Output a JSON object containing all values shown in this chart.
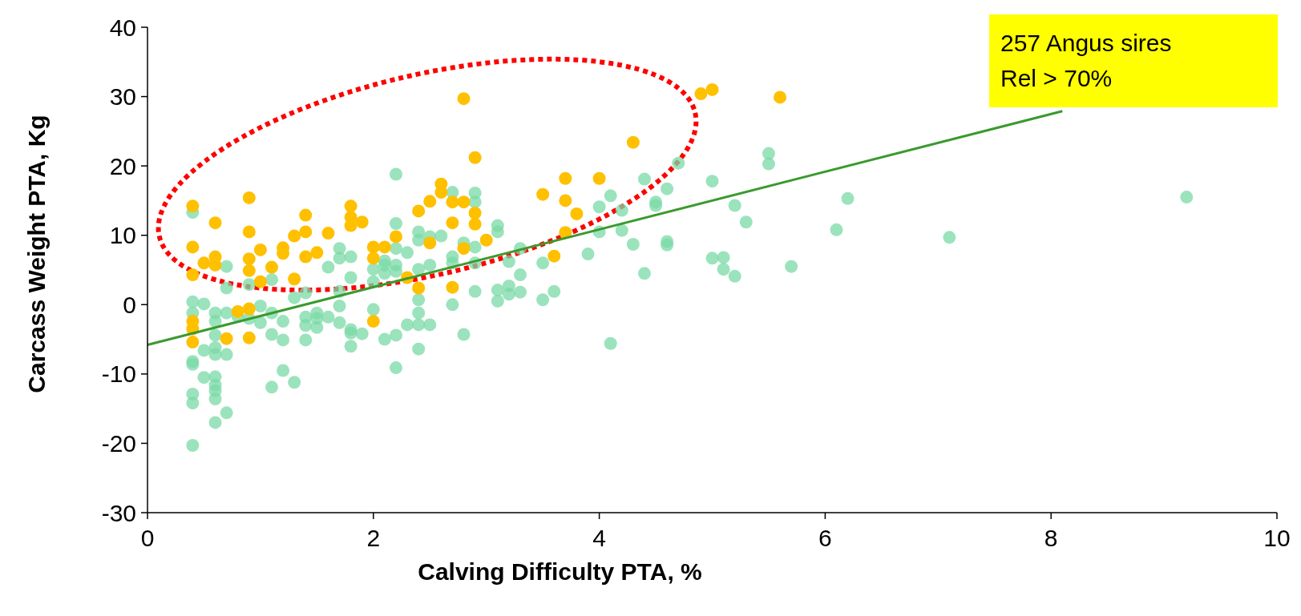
{
  "chart_data": {
    "type": "scatter",
    "xlabel": "Calving Difficulty PTA, %",
    "ylabel": "Carcass Weight PTA, Kg",
    "xlim": [
      0,
      10
    ],
    "xticks": [
      0,
      2,
      4,
      6,
      8,
      10
    ],
    "ylim": [
      -30,
      40
    ],
    "yticks": [
      -30,
      -20,
      -10,
      0,
      10,
      20,
      30,
      40
    ],
    "annotations": [
      "257 Angus sires",
      "Rel > 70%"
    ],
    "series": [
      {
        "marker": "circle",
        "color": "#7ad9a6",
        "x": [
          0.4,
          0.4,
          0.4,
          0.4,
          0.4,
          0.4,
          0.4,
          0.4,
          0.5,
          0.5,
          0.5,
          0.6,
          0.6,
          0.6,
          0.6,
          0.6,
          0.6,
          0.6,
          0.6,
          0.6,
          0.6,
          0.7,
          0.7,
          0.7,
          0.7,
          0.7,
          0.8,
          0.9,
          0.9,
          1.0,
          1.0,
          1.1,
          1.1,
          1.1,
          1.1,
          1.2,
          1.2,
          1.2,
          1.3,
          1.3,
          1.4,
          1.4,
          1.4,
          1.4,
          1.5,
          1.5,
          1.5,
          1.6,
          1.6,
          1.7,
          1.7,
          1.7,
          1.7,
          1.7,
          1.8,
          1.8,
          1.8,
          1.8,
          1.8,
          1.9,
          2.0,
          2.0,
          2.0,
          2.1,
          2.1,
          2.1,
          2.1,
          2.2,
          2.2,
          2.2,
          2.2,
          2.2,
          2.2,
          2.2,
          2.3,
          2.3,
          2.4,
          2.4,
          2.4,
          2.4,
          2.4,
          2.4,
          2.4,
          2.5,
          2.5,
          2.5,
          2.6,
          2.7,
          2.7,
          2.7,
          2.7,
          2.8,
          2.8,
          2.9,
          2.9,
          2.9,
          2.9,
          2.9,
          3.1,
          3.1,
          3.1,
          3.1,
          3.2,
          3.2,
          3.2,
          3.3,
          3.3,
          3.3,
          3.5,
          3.5,
          3.6,
          3.9,
          4.0,
          4.0,
          4.1,
          4.1,
          4.2,
          4.2,
          4.3,
          4.4,
          4.4,
          4.5,
          4.5,
          4.6,
          4.6,
          4.6,
          4.7,
          5.0,
          5.0,
          5.1,
          5.1,
          5.2,
          5.2,
          5.3,
          5.5,
          5.5,
          5.7,
          6.1,
          6.2,
          7.1,
          9.2
        ],
        "values": [
          13.3,
          0.4,
          -1.2,
          -8.2,
          -8.6,
          -12.9,
          -14.2,
          -20.3,
          0.1,
          -6.6,
          -10.5,
          -1.2,
          -2.4,
          -4.4,
          -6.2,
          -7.2,
          -10.4,
          -11.6,
          -12.4,
          -13.6,
          -17.0,
          5.5,
          2.4,
          -1.2,
          -7.2,
          -15.6,
          -1.7,
          2.9,
          -2.0,
          -0.2,
          -2.6,
          3.6,
          -1.2,
          -4.3,
          -11.9,
          -2.4,
          -5.1,
          -9.5,
          1.0,
          -11.2,
          1.7,
          -1.8,
          -3.0,
          -5.1,
          -1.2,
          -2.0,
          -3.3,
          5.4,
          -1.8,
          8.1,
          6.7,
          1.9,
          -0.2,
          -2.6,
          6.9,
          3.9,
          -3.6,
          -4.1,
          -6.0,
          -4.2,
          5.1,
          3.3,
          -0.7,
          6.3,
          5.7,
          4.5,
          -5.0,
          18.8,
          11.7,
          8.1,
          5.7,
          4.8,
          -4.4,
          -9.1,
          7.5,
          -2.9,
          10.5,
          9.3,
          5.1,
          0.7,
          -1.2,
          -2.9,
          -6.4,
          9.8,
          5.7,
          -2.9,
          9.9,
          16.2,
          6.9,
          6.0,
          0.0,
          8.9,
          -4.3,
          16.1,
          14.8,
          8.3,
          6.0,
          1.9,
          11.4,
          10.5,
          2.1,
          0.5,
          6.2,
          2.7,
          1.5,
          8.1,
          4.3,
          1.8,
          6.0,
          0.7,
          1.9,
          7.3,
          10.5,
          14.1,
          15.7,
          -5.6,
          10.7,
          13.6,
          8.7,
          18.1,
          4.5,
          14.8,
          14.3,
          9.1,
          8.6,
          16.7,
          20.4,
          17.8,
          6.7,
          5.1,
          6.8,
          14.3,
          4.1,
          11.9,
          21.8,
          20.3,
          5.5,
          10.8,
          15.3,
          9.7,
          15.5
        ]
      },
      {
        "marker": "circle",
        "color": "#ffc000",
        "x": [
          0.4,
          0.4,
          0.4,
          0.4,
          0.4,
          0.4,
          0.5,
          0.6,
          0.6,
          0.6,
          0.7,
          0.8,
          0.9,
          0.9,
          0.9,
          0.9,
          0.9,
          0.9,
          1.0,
          1.0,
          1.1,
          1.2,
          1.2,
          1.3,
          1.3,
          1.4,
          1.4,
          1.4,
          1.5,
          1.6,
          1.8,
          1.8,
          1.8,
          1.9,
          2.0,
          2.0,
          2.0,
          2.1,
          2.2,
          2.3,
          2.4,
          2.4,
          2.5,
          2.5,
          2.6,
          2.6,
          2.7,
          2.7,
          2.7,
          2.8,
          2.8,
          2.8,
          2.9,
          2.9,
          2.9,
          3.0,
          3.5,
          3.6,
          3.7,
          3.7,
          3.7,
          3.8,
          4.0,
          4.3,
          4.9,
          5.0,
          5.6
        ],
        "values": [
          14.2,
          8.3,
          4.3,
          -2.4,
          -3.5,
          -5.4,
          6.0,
          11.8,
          6.9,
          5.7,
          -4.9,
          -1.0,
          15.4,
          10.5,
          6.6,
          4.9,
          -0.6,
          -4.8,
          7.9,
          3.3,
          5.4,
          8.2,
          7.4,
          9.9,
          3.7,
          12.9,
          10.5,
          6.9,
          7.5,
          10.3,
          14.2,
          12.6,
          11.4,
          11.9,
          8.3,
          6.7,
          -2.4,
          8.3,
          9.8,
          3.9,
          13.5,
          2.4,
          14.9,
          8.9,
          17.4,
          16.2,
          14.8,
          11.8,
          2.5,
          29.7,
          14.8,
          8.1,
          21.2,
          13.2,
          11.6,
          9.3,
          15.9,
          7.0,
          18.2,
          15.0,
          10.4,
          13.1,
          18.2,
          23.4,
          30.4,
          31.0,
          29.9
        ]
      },
      {
        "type": "line",
        "color": "#3a9a2e",
        "x": [
          0,
          8.1
        ],
        "values": [
          -5.8,
          27.9
        ]
      }
    ]
  }
}
